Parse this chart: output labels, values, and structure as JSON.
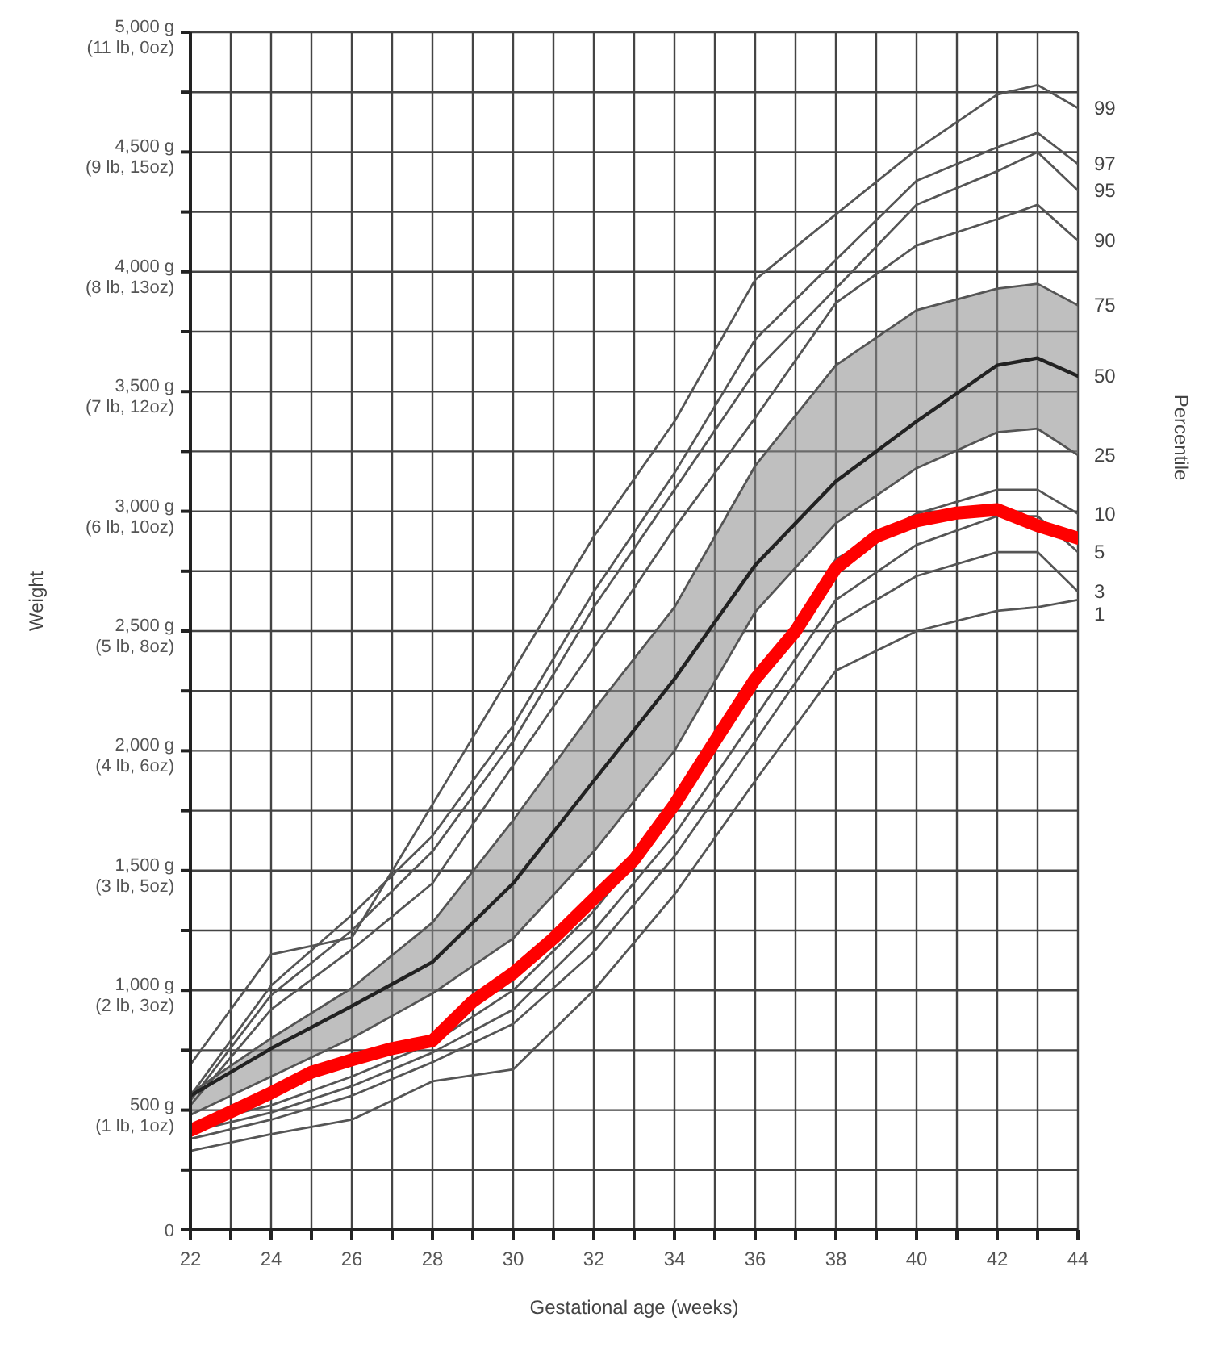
{
  "chart_data": {
    "type": "line",
    "xlabel": "Gestational age (weeks)",
    "ylabel": "Weight",
    "y2label": "Percentile",
    "x": [
      22,
      24,
      26,
      28,
      30,
      32,
      34,
      36,
      38,
      40,
      42,
      43,
      44
    ],
    "xlim": [
      22,
      44
    ],
    "xticks": [
      22,
      {
        "value": 23,
        "label": null
      },
      24,
      {
        "value": 25,
        "label": null
      },
      26,
      {
        "value": 27,
        "label": null
      },
      28,
      {
        "value": 29,
        "label": null
      },
      30,
      {
        "value": 31,
        "label": null
      },
      32,
      {
        "value": 33,
        "label": null
      },
      34,
      {
        "value": 35,
        "label": null
      },
      36,
      {
        "value": 37,
        "label": null
      },
      38,
      {
        "value": 39,
        "label": null
      },
      40,
      {
        "value": 41,
        "label": null
      },
      42,
      {
        "value": 43,
        "label": null
      },
      44
    ],
    "ylim": [
      0,
      5000
    ],
    "yticks": [
      0,
      {
        "value": 250,
        "label": null
      },
      {
        "value": 500,
        "label": "500 g"
      },
      {
        "value": 750,
        "label": null
      },
      {
        "value": 1000,
        "label": "1,000 g"
      },
      {
        "value": 1250,
        "label": null
      },
      {
        "value": 1500,
        "label": "1,500 g"
      },
      {
        "value": 1750,
        "label": null
      },
      {
        "value": 2000,
        "label": "2,000 g"
      },
      {
        "value": 2250,
        "label": null
      },
      {
        "value": 2500,
        "label": "2,500 g"
      },
      {
        "value": 2750,
        "label": null
      },
      {
        "value": 3000,
        "label": "3,000 g"
      },
      {
        "value": 3250,
        "label": null
      },
      {
        "value": 3500,
        "label": "3,500 g"
      },
      {
        "value": 3750,
        "label": null
      },
      {
        "value": 4000,
        "label": "4,000 g"
      },
      {
        "value": 4250,
        "label": null
      },
      {
        "value": 4500,
        "label": "4,500 g"
      },
      {
        "value": 4750,
        "label": null
      },
      {
        "value": 5000,
        "label": "5,000 g"
      }
    ],
    "annotations": [
      "(1 lb, 1oz)",
      "(2 lb, 3oz)",
      "(3 lb, 5oz)",
      "(4 lb, 6oz)",
      "(5 lb, 8oz)",
      "(6 lb, 10oz)",
      "(7 lb, 12oz)",
      "(8 lb, 13oz)",
      "(9 lb, 15oz)",
      "(11 lb, 0oz)"
    ],
    "grid": true,
    "legend": false,
    "marker": "none",
    "line_style": "solid",
    "series": [
      {
        "name": "99",
        "color": "#555555",
        "values": [
          690,
          1150,
          1220,
          1776,
          2335,
          2895,
          3375,
          3967,
          4240,
          4510,
          4740,
          4780,
          4684
        ]
      },
      {
        "name": "97",
        "color": "#555555",
        "values": [
          560,
          1020,
          1315,
          1645,
          2105,
          2665,
          3160,
          3717,
          4050,
          4380,
          4520,
          4580,
          4450
        ]
      },
      {
        "name": "95",
        "color": "#555555",
        "values": [
          540,
          980,
          1250,
          1580,
          2040,
          2600,
          3090,
          3585,
          3930,
          4280,
          4420,
          4500,
          4340
        ]
      },
      {
        "name": "90",
        "color": "#555555",
        "values": [
          520,
          920,
          1170,
          1447,
          1940,
          2430,
          2930,
          3390,
          3870,
          4110,
          4220,
          4280,
          4130
        ]
      },
      {
        "name": "75",
        "color": "#555555",
        "values": [
          570,
          800,
          1010,
          1283,
          1710,
          2170,
          2600,
          3190,
          3610,
          3840,
          3930,
          3950,
          3860
        ]
      },
      {
        "name": "50",
        "color": "#222222",
        "values": [
          560,
          757,
          934,
          1118,
          1447,
          1875,
          2300,
          2775,
          3125,
          3375,
          3610,
          3640,
          3565
        ],
        "lower": [
          480,
          640,
          800,
          987,
          1217,
          1580,
          2000,
          2580,
          2950,
          3180,
          3330,
          3345,
          3235
        ],
        "upper": [
          570,
          800,
          1010,
          1283,
          1710,
          2170,
          2600,
          3190,
          3610,
          3840,
          3930,
          3950,
          3860
        ]
      },
      {
        "name": "25",
        "color": "#555555",
        "values": [
          480,
          640,
          800,
          987,
          1217,
          1580,
          2000,
          2580,
          2950,
          3180,
          3330,
          3345,
          3235
        ]
      },
      {
        "name": "10",
        "color": "#555555",
        "values": [
          440,
          520,
          640,
          780,
          1000,
          1330,
          1760,
          2270,
          2800,
          2990,
          3090,
          3090,
          2990
        ]
      },
      {
        "name": "5",
        "color": "#555555",
        "values": [
          410,
          490,
          600,
          740,
          920,
          1250,
          1650,
          2140,
          2630,
          2860,
          2980,
          2980,
          2830
        ]
      },
      {
        "name": "3",
        "color": "#555555",
        "values": [
          380,
          460,
          560,
          700,
          860,
          1160,
          1560,
          2040,
          2530,
          2730,
          2830,
          2830,
          2665
        ]
      },
      {
        "name": "1",
        "color": "#555555",
        "values": [
          330,
          400,
          460,
          620,
          670,
          1000,
          1400,
          1875,
          2335,
          2500,
          2585,
          2600,
          2630
        ]
      },
      {
        "color": "#ff0000",
        "x": [
          22,
          23,
          24,
          25,
          26,
          27,
          28,
          29,
          30,
          31,
          32,
          33,
          34,
          35,
          36,
          37,
          38,
          39,
          40,
          41,
          42,
          43,
          44
        ],
        "values": [
          415,
          493,
          572,
          658,
          710,
          757,
          790,
          954,
          1072,
          1217,
          1382,
          1546,
          1776,
          2040,
          2300,
          2500,
          2763,
          2895,
          2960,
          2993,
          3007,
          2940,
          2888
        ]
      }
    ]
  }
}
